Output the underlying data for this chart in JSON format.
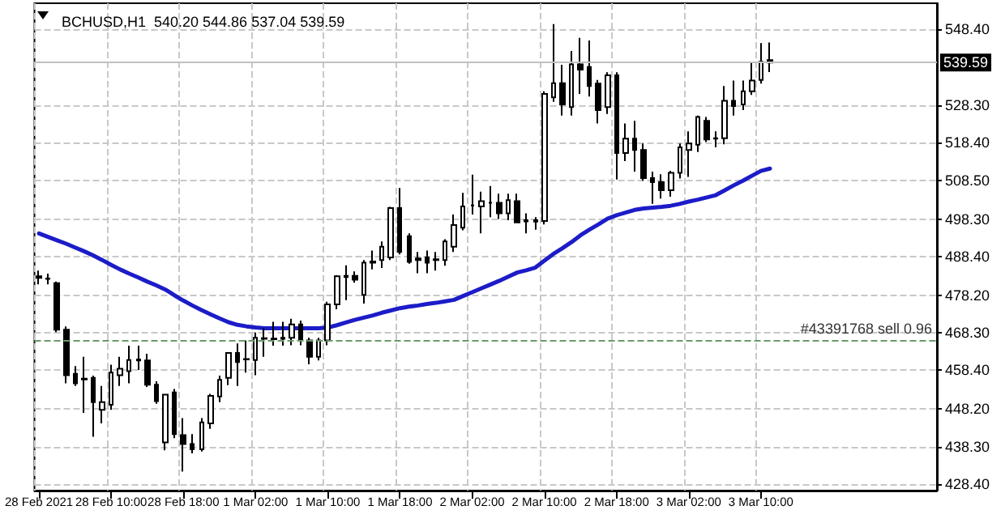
{
  "chart_data": {
    "type": "candlestick",
    "title": "BCHUSD,H1  540.20 544.86 537.04 539.59",
    "color": "#000000",
    "categories": [
      "28 Feb 2021",
      null,
      null,
      null,
      null,
      null,
      null,
      null,
      "28 Feb 10:00",
      null,
      null,
      null,
      null,
      null,
      null,
      null,
      "28 Feb 18:00",
      null,
      null,
      null,
      null,
      null,
      null,
      null,
      "1 Mar 02:00",
      null,
      null,
      null,
      null,
      null,
      null,
      null,
      "1 Mar 10:00",
      null,
      null,
      null,
      null,
      null,
      null,
      null,
      "1 Mar 18:00",
      null,
      null,
      null,
      null,
      null,
      null,
      null,
      "2 Mar 02:00",
      null,
      null,
      null,
      null,
      null,
      null,
      null,
      "2 Mar 10:00",
      null,
      null,
      null,
      null,
      null,
      null,
      null,
      "2 Mar 18:00",
      null,
      null,
      null,
      null,
      null,
      null,
      null,
      "3 Mar 02:00",
      null,
      null,
      null,
      null,
      null,
      null,
      null,
      "3 Mar 10:00",
      null,
      null,
      null,
      null,
      null,
      null,
      null,
      null,
      null,
      null,
      null,
      null,
      null,
      null,
      null,
      null,
      null,
      null,
      null
    ],
    "ohlc": [
      [
        483.2,
        484.7,
        481.1,
        482.8
      ],
      [
        482.5,
        483.9,
        481.1,
        482.6
      ],
      [
        481.4,
        481.8,
        468.5,
        469.1
      ],
      [
        469.1,
        470.0,
        455.0,
        457.1
      ],
      [
        457.5,
        459.5,
        454.3,
        455.0
      ],
      [
        456.2,
        462.0,
        447.2,
        456.0
      ],
      [
        456.4,
        457.0,
        440.9,
        450.0
      ],
      [
        448.0,
        454.3,
        444.4,
        450.0
      ],
      [
        449.3,
        459.9,
        448.0,
        457.8
      ],
      [
        457.1,
        462.0,
        454.3,
        458.8
      ],
      [
        458.2,
        464.9,
        455.0,
        461.1
      ],
      [
        461.0,
        464.9,
        458.5,
        461.3
      ],
      [
        461.0,
        462.8,
        454.0,
        454.6
      ],
      [
        454.6,
        455.5,
        449.6,
        450.3
      ],
      [
        439.4,
        452.2,
        437.3,
        452.0
      ],
      [
        452.6,
        453.5,
        440.5,
        441.6
      ],
      [
        441.3,
        445.8,
        431.7,
        439.0
      ],
      [
        439.0,
        441.6,
        436.5,
        437.6
      ],
      [
        437.6,
        445.8,
        437.0,
        444.7
      ],
      [
        444.4,
        452.2,
        443.0,
        451.7
      ],
      [
        451.5,
        457.0,
        450.0,
        455.9
      ],
      [
        456.4,
        463.0,
        454.5,
        463.0
      ],
      [
        463.0,
        465.5,
        454.3,
        460.6
      ],
      [
        461.4,
        466.3,
        457.8,
        461.3
      ],
      [
        461.1,
        468.4,
        457.1,
        467.0
      ],
      [
        466.7,
        469.5,
        462.0,
        466.9
      ],
      [
        466.6,
        471.2,
        464.9,
        466.8
      ],
      [
        466.7,
        471.2,
        464.9,
        467.0
      ],
      [
        467.0,
        472.0,
        465.0,
        470.5
      ],
      [
        470.5,
        471.5,
        465.0,
        466.3
      ],
      [
        466.3,
        467.0,
        460.0,
        462.0
      ],
      [
        462.0,
        467.0,
        461.0,
        466.3
      ],
      [
        466.3,
        476.5,
        465.0,
        475.8
      ],
      [
        475.8,
        483.5,
        474.5,
        483.2
      ],
      [
        483.0,
        486.1,
        476.9,
        483.3
      ],
      [
        483.3,
        484.5,
        481.5,
        482.3
      ],
      [
        478.3,
        487.5,
        476.0,
        486.8
      ],
      [
        486.8,
        490.0,
        485.0,
        487.1
      ],
      [
        487.5,
        492.4,
        485.4,
        491.0
      ],
      [
        488.2,
        501.5,
        487.5,
        501.2
      ],
      [
        501.2,
        506.5,
        489.0,
        489.6
      ],
      [
        493.8,
        494.5,
        486.5,
        487.0
      ],
      [
        487.5,
        489.6,
        484.0,
        487.9
      ],
      [
        488.2,
        490.0,
        484.0,
        486.8
      ],
      [
        487.5,
        489.6,
        484.7,
        487.7
      ],
      [
        487.5,
        493.0,
        486.0,
        492.4
      ],
      [
        491.0,
        499.5,
        489.6,
        496.7
      ],
      [
        496.0,
        505.2,
        495.3,
        501.6
      ],
      [
        501.9,
        510.0,
        499.5,
        501.9
      ],
      [
        501.6,
        505.5,
        494.5,
        503.0
      ],
      [
        502.6,
        507.0,
        498.8,
        502.6
      ],
      [
        502.6,
        505.0,
        498.3,
        499.8
      ],
      [
        499.8,
        505.0,
        498.0,
        503.3
      ],
      [
        503.0,
        505.0,
        497.3,
        497.4
      ],
      [
        497.7,
        499.8,
        494.5,
        498.0
      ],
      [
        497.6,
        498.8,
        495.5,
        498.0
      ],
      [
        497.8,
        532.0,
        496.9,
        531.3
      ],
      [
        530.4,
        549.7,
        529.2,
        534.1
      ],
      [
        534.1,
        539.0,
        525.6,
        528.5
      ],
      [
        527.8,
        542.6,
        525.6,
        539.1
      ],
      [
        539.1,
        546.1,
        531.3,
        537.7
      ],
      [
        538.4,
        545.4,
        530.6,
        533.4
      ],
      [
        534.0,
        535.0,
        523.5,
        527.0
      ],
      [
        527.8,
        537.0,
        526.0,
        536.2
      ],
      [
        536.2,
        537.0,
        508.7,
        515.7
      ],
      [
        515.7,
        523.5,
        513.6,
        519.5
      ],
      [
        519.5,
        524.2,
        510.8,
        516.5
      ],
      [
        516.5,
        518.2,
        508.4,
        509.1
      ],
      [
        509.1,
        510.8,
        502.3,
        508.0
      ],
      [
        508.0,
        510.1,
        503.7,
        505.9
      ],
      [
        505.9,
        511.0,
        504.2,
        510.5
      ],
      [
        510.5,
        518.2,
        509.0,
        517.2
      ],
      [
        516.5,
        521.4,
        509.4,
        518.2
      ],
      [
        517.9,
        525.6,
        516.0,
        525.2
      ],
      [
        524.2,
        525.2,
        518.6,
        519.3
      ],
      [
        519.6,
        521.4,
        517.2,
        519.5
      ],
      [
        519.6,
        533.4,
        518.0,
        529.5
      ],
      [
        529.5,
        534.8,
        525.6,
        528.1
      ],
      [
        528.5,
        534.8,
        527.0,
        532.0
      ],
      [
        532.0,
        539.8,
        531.0,
        534.8
      ],
      [
        535.0,
        544.7,
        534.0,
        539.8
      ],
      [
        540.2,
        544.86,
        537.04,
        539.59
      ],
      null,
      null,
      null,
      null,
      null,
      null,
      null,
      null,
      null,
      null,
      null,
      null,
      null,
      null,
      null,
      null,
      null,
      null
    ],
    "series": [
      {
        "type": "line",
        "color": "#1c1cc8",
        "values": [
          494.5,
          493.6,
          492.7,
          491.8,
          490.8,
          489.8,
          488.7,
          487.5,
          486.2,
          485.0,
          483.9,
          482.9,
          481.8,
          480.8,
          479.7,
          478.2,
          476.8,
          475.5,
          474.3,
          473.2,
          472.1,
          471.1,
          470.4,
          470.0,
          469.7,
          469.5,
          469.5,
          469.5,
          469.5,
          469.5,
          469.5,
          469.5,
          469.7,
          470.3,
          471.0,
          471.7,
          472.3,
          472.9,
          473.6,
          474.2,
          474.8,
          475.2,
          475.5,
          475.9,
          476.2,
          476.6,
          477.0,
          478.0,
          479.0,
          480.0,
          481.0,
          482.0,
          483.1,
          484.2,
          484.8,
          485.5,
          487.3,
          489.1,
          490.6,
          492.2,
          494.0,
          495.5,
          496.9,
          498.4,
          499.3,
          500.0,
          500.7,
          501.1,
          501.3,
          501.5,
          501.8,
          502.3,
          502.9,
          503.4,
          504.0,
          504.6,
          505.9,
          507.2,
          508.4,
          509.7,
          511.0,
          511.6,
          null,
          null,
          null,
          null,
          null,
          null,
          null,
          null,
          null,
          null,
          null,
          null,
          null,
          null,
          null,
          null,
          null,
          null
        ]
      }
    ],
    "marker": "none",
    "line_style": "solid",
    "ylim": [
      426.7,
      555.2
    ],
    "yticks": [
      {
        "value": 548.4,
        "label": "548.40"
      },
      {
        "value": 528.3,
        "label": "528.30"
      },
      {
        "value": 518.4,
        "label": "518.40"
      },
      {
        "value": 508.5,
        "label": "508.50"
      },
      {
        "value": 498.3,
        "label": "498.30"
      },
      {
        "value": 488.4,
        "label": "488.40"
      },
      {
        "value": 478.2,
        "label": "478.20"
      },
      {
        "value": 468.3,
        "label": "468.30"
      },
      {
        "value": 458.4,
        "label": "458.40"
      },
      {
        "value": 448.2,
        "label": "448.20"
      },
      {
        "value": 438.3,
        "label": "438.30"
      },
      {
        "value": 428.4,
        "label": "428.40"
      }
    ],
    "ref_lines": [
      {
        "axis": "y",
        "value": 539.59,
        "label": "539.59",
        "color": "#c0c0c0",
        "line_style": "solid"
      },
      {
        "axis": "y",
        "value": 466.1,
        "label": "#43391768 sell 0.96",
        "color": "#6a9a6a",
        "line_style": "dashed"
      }
    ],
    "grid": true
  }
}
